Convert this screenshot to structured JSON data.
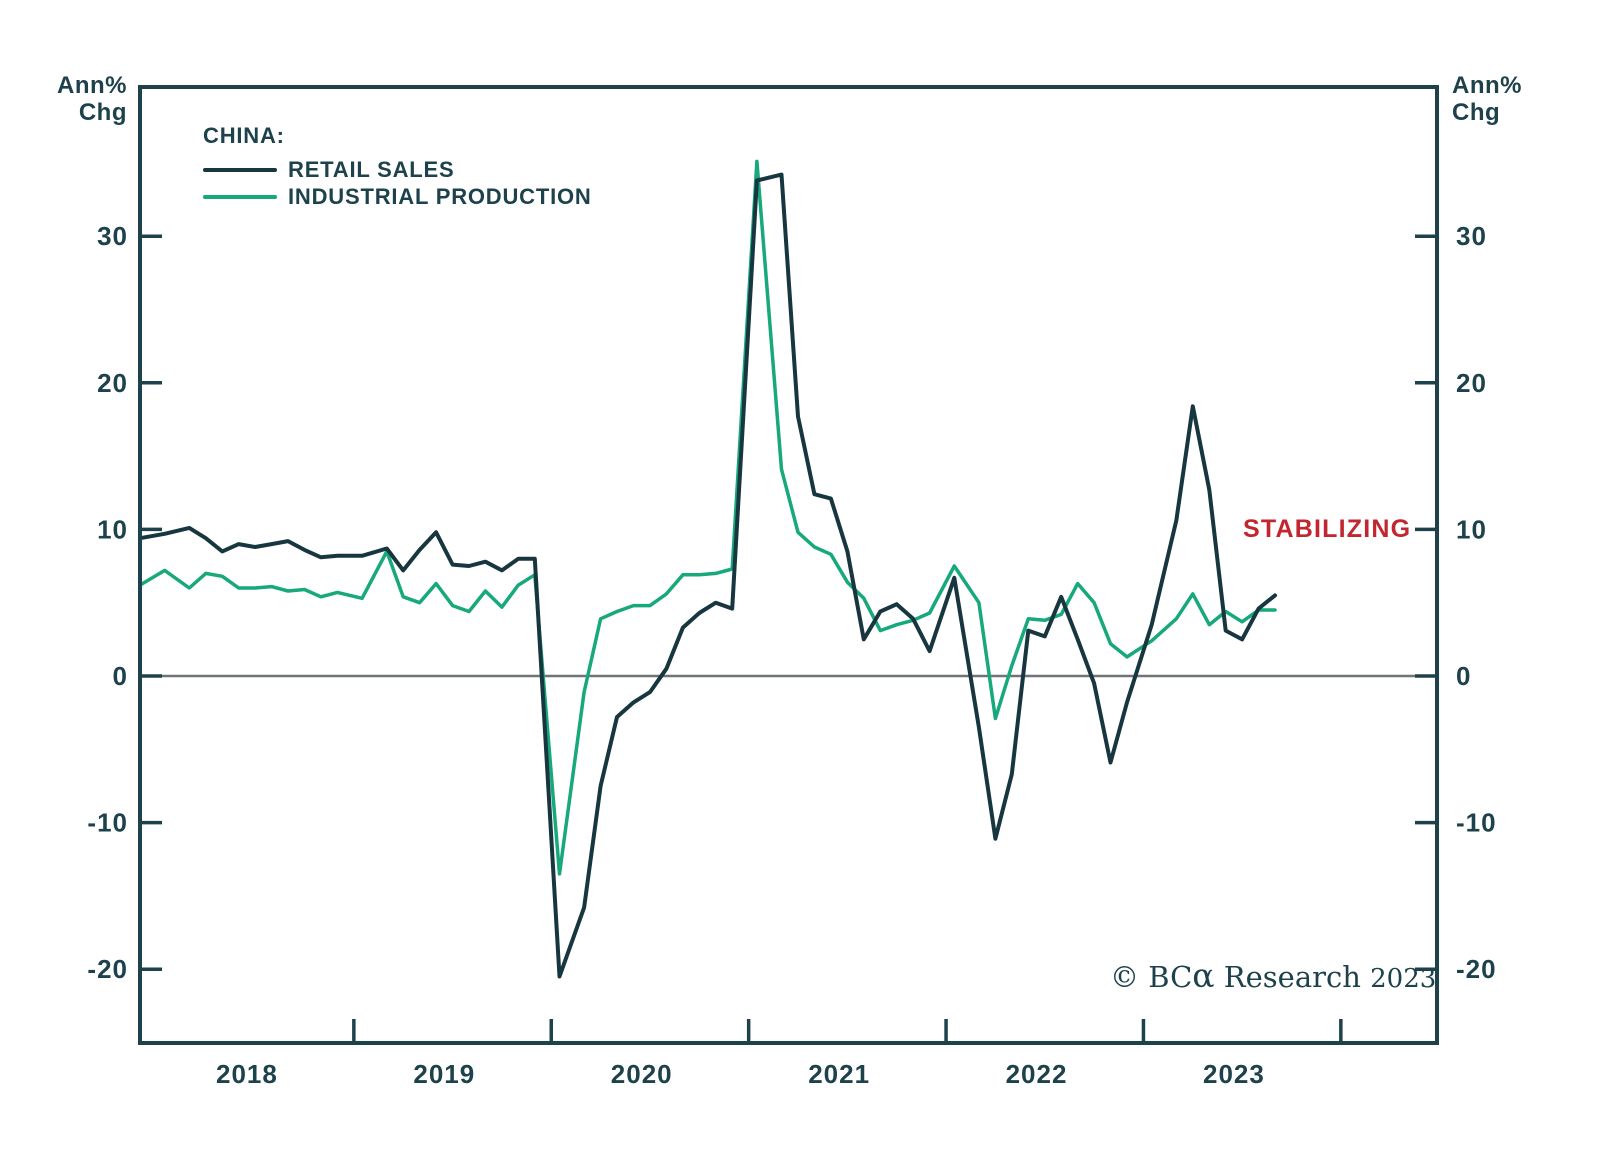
{
  "axis": {
    "left_label_line1": "Ann%",
    "left_label_line2": "Chg",
    "right_label_line1": "Ann%",
    "right_label_line2": "Chg"
  },
  "legend": {
    "title": "CHINA:",
    "items": [
      {
        "label": "RETAIL SALES",
        "color": "#17363f"
      },
      {
        "label": "INDUSTRIAL PRODUCTION",
        "color": "#17a87b"
      }
    ]
  },
  "annotation": {
    "text": "STABILIZING",
    "color": "#c2262e"
  },
  "copyright": {
    "prefix": "© BC",
    "alpha": "α",
    "suffix": " Research ",
    "year": "2023"
  },
  "chart_data": {
    "type": "line",
    "title": "CHINA: Retail Sales and Industrial Production (Ann% Chg)",
    "ylabel": "Ann% Chg",
    "xlabel": "",
    "grid": "zero-line-only",
    "legend_position": "top-left",
    "colors": {
      "frame": "#1e424b",
      "tick_text": "#1e424b",
      "zero_line": "#6f7577",
      "retail": "#17363f",
      "industrial": "#17a87b",
      "annotation": "#c2262e"
    },
    "y_axis": {
      "ticks": [
        30,
        20,
        10,
        0,
        -10,
        -20
      ],
      "ylim": [
        -25,
        40
      ],
      "unit": "Ann% Chg"
    },
    "x_axis": {
      "year_labels": [
        "2018",
        "2019",
        "2020",
        "2021",
        "2022",
        "2023"
      ],
      "note": "x values are months since Jan 2018; Jan-Feb figures are combined single points; series start Dec 2017, end Sep 2023"
    },
    "x": [
      -1,
      0.5,
      2,
      3,
      4,
      5,
      6,
      7,
      8,
      9,
      10,
      11,
      12.5,
      14,
      15,
      16,
      17,
      18,
      19,
      20,
      21,
      22,
      23,
      24.5,
      26,
      27,
      28,
      29,
      30,
      31,
      32,
      33,
      34,
      35,
      36.5,
      38,
      39,
      40,
      41,
      42,
      43,
      44,
      45,
      46,
      47,
      48.5,
      50,
      51,
      52,
      53,
      54,
      55,
      56,
      57,
      58,
      59,
      60.5,
      62,
      63,
      64,
      65,
      66,
      67,
      68
    ],
    "series": [
      {
        "name": "RETAIL SALES",
        "color": "#17363f",
        "values": [
          9.4,
          9.7,
          10.1,
          9.4,
          8.5,
          9.0,
          8.8,
          9.0,
          9.2,
          8.6,
          8.1,
          8.2,
          8.2,
          8.7,
          7.2,
          8.6,
          9.8,
          7.6,
          7.5,
          7.8,
          7.2,
          8.0,
          8.0,
          -20.5,
          -15.8,
          -7.5,
          -2.8,
          -1.8,
          -1.1,
          0.5,
          3.3,
          4.3,
          5.0,
          4.6,
          33.8,
          34.2,
          17.7,
          12.4,
          12.1,
          8.5,
          2.5,
          4.4,
          4.9,
          3.9,
          1.7,
          6.7,
          -3.5,
          -11.1,
          -6.7,
          3.1,
          2.7,
          5.4,
          2.5,
          -0.5,
          -5.9,
          -1.8,
          3.5,
          10.6,
          18.4,
          12.7,
          3.1,
          2.5,
          4.6,
          5.5
        ]
      },
      {
        "name": "INDUSTRIAL PRODUCTION",
        "color": "#17a87b",
        "values": [
          6.2,
          7.2,
          6.0,
          7.0,
          6.8,
          6.0,
          6.0,
          6.1,
          5.8,
          5.9,
          5.4,
          5.7,
          5.3,
          8.5,
          5.4,
          5.0,
          6.3,
          4.8,
          4.4,
          5.8,
          4.7,
          6.2,
          6.9,
          -13.5,
          -1.1,
          3.9,
          4.4,
          4.8,
          4.8,
          5.6,
          6.9,
          6.9,
          7.0,
          7.3,
          35.1,
          14.1,
          9.8,
          8.8,
          8.3,
          6.4,
          5.3,
          3.1,
          3.5,
          3.8,
          4.3,
          7.5,
          5.0,
          -2.9,
          0.7,
          3.9,
          3.8,
          4.2,
          6.3,
          5.0,
          2.2,
          1.3,
          2.4,
          3.9,
          5.6,
          3.5,
          4.4,
          3.7,
          4.5,
          4.5
        ]
      }
    ],
    "annotations": [
      {
        "text": "STABILIZING",
        "x_month": 64,
        "y_value": 10,
        "color": "#c2262e"
      }
    ]
  }
}
